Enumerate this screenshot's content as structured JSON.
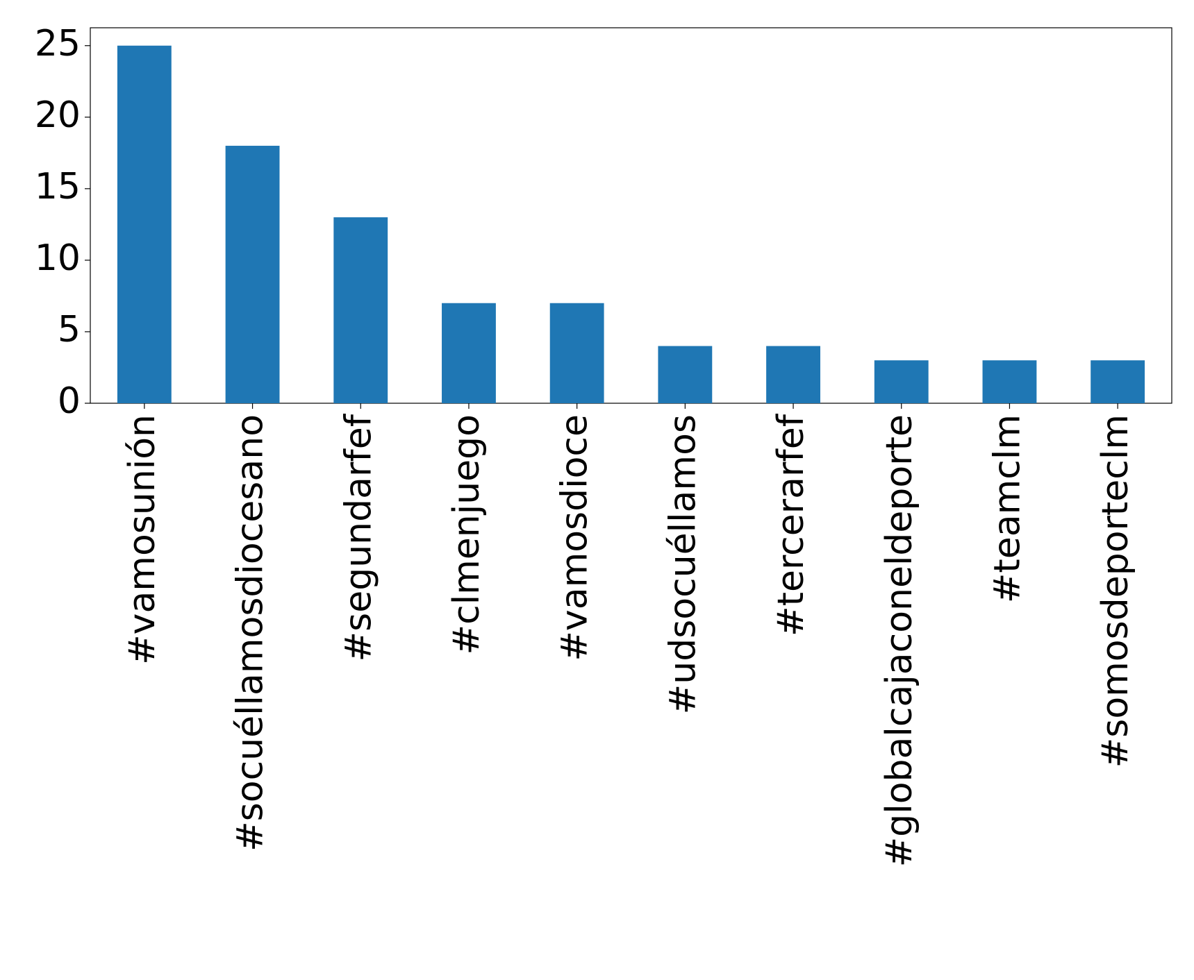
{
  "chart_data": {
    "type": "bar",
    "categories": [
      "#vamosunión",
      "#socuéllamosdiocesano",
      "#segundarfef",
      "#clmenjuego",
      "#vamosdioce",
      "#udsocuéllamos",
      "#tercerarfef",
      "#globalcajaconeldeporte",
      "#teamclm",
      "#somosdeporteclm"
    ],
    "values": [
      25,
      18,
      13,
      7,
      7,
      4,
      4,
      3,
      3,
      3
    ],
    "color": "#1f77b4",
    "ylim": [
      0,
      26.25
    ],
    "yticks": [
      0,
      5,
      10,
      15,
      20,
      25
    ],
    "grid": false
  }
}
